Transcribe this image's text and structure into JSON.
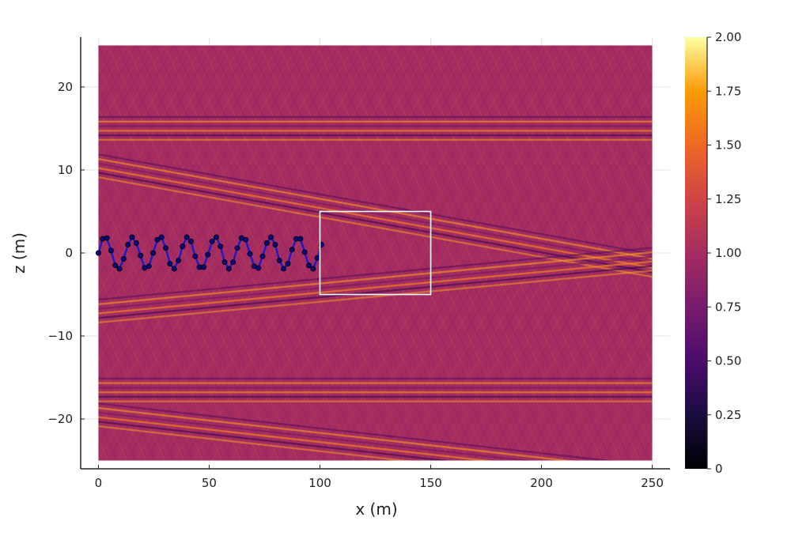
{
  "chart_data": {
    "type": "heatmap",
    "title": "",
    "xlabel": "x (m)",
    "ylabel": "z (m)",
    "xlim": [
      -8,
      258
    ],
    "ylim": [
      -26,
      26
    ],
    "field_extent": {
      "x": [
        0,
        250
      ],
      "z": [
        -25,
        25
      ]
    },
    "x_ticks": [
      0,
      50,
      100,
      150,
      200,
      250
    ],
    "y_ticks": [
      -20,
      -10,
      0,
      10,
      20
    ],
    "colorbar": {
      "colormap": "inferno",
      "range": [
        0,
        2
      ],
      "ticks": [
        "0",
        "0.25",
        "0.50",
        "0.75",
        "1.00",
        "1.25",
        "1.50",
        "1.75",
        "2.00"
      ]
    },
    "background_value": 1.0,
    "wave_bands": [
      {
        "x0": 0,
        "z0": 10.5,
        "slope": -0.048
      },
      {
        "x0": 0,
        "z0": -19.5,
        "slope": -0.03
      },
      {
        "x0": 0,
        "z0": -7.0,
        "slope": 0.025
      },
      {
        "x0": 0,
        "z0": 15.0,
        "slope": 0.0
      },
      {
        "x0": 0,
        "z0": -16.5,
        "slope": 0.0
      }
    ],
    "path_series": {
      "name": "",
      "color": "#1a1acc",
      "x": [
        0,
        1.9,
        3.8,
        5.7,
        7.6,
        9.5,
        11.4,
        13.3,
        15.2,
        17.1,
        19,
        20.9,
        22.8,
        24.7,
        26.6,
        28.5,
        30.4,
        32.3,
        34.2,
        36.1,
        38,
        39.9,
        41.8,
        43.7,
        45.6,
        47.5,
        49.4,
        51.3,
        53.2,
        55.1,
        57,
        58.9,
        60.8,
        62.7,
        64.6,
        66.5,
        68.4,
        70.3,
        72.2,
        74.1,
        76,
        77.9,
        79.8,
        81.7,
        83.6,
        85.5,
        87.4,
        89.3,
        91.2,
        93.1,
        95,
        96.9,
        98.8,
        100.7
      ],
      "z": [
        0,
        1.7,
        1.8,
        0.3,
        -1.5,
        -1.9,
        -0.7,
        1.0,
        1.9,
        1.2,
        -0.3,
        -1.8,
        -1.6,
        0.0,
        1.6,
        1.9,
        0.6,
        -1.3,
        -1.9,
        -0.9,
        0.8,
        1.9,
        1.4,
        -0.4,
        -1.7,
        -1.7,
        -0.2,
        1.4,
        1.9,
        0.8,
        -1.1,
        -1.9,
        -1.1,
        0.6,
        1.8,
        1.6,
        -0.1,
        -1.6,
        -1.8,
        -0.4,
        1.2,
        1.9,
        1.0,
        -0.9,
        -1.9,
        -1.3,
        0.4,
        1.7,
        1.7,
        0.1,
        -1.5,
        -1.9,
        -0.6,
        1.0
      ]
    },
    "highlight_box": {
      "x": [
        100,
        150
      ],
      "z": [
        -5,
        5
      ],
      "color": "#ffffff"
    },
    "grid": true,
    "legend": "none"
  }
}
